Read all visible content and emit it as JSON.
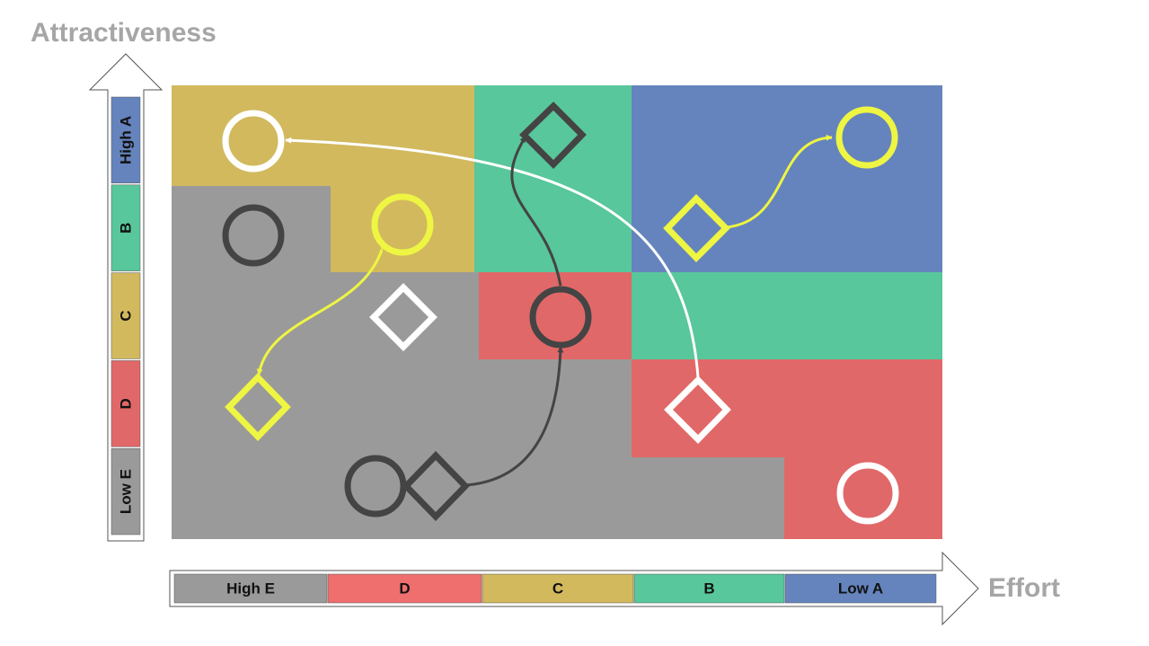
{
  "axes": {
    "y_title": "Attractiveness",
    "x_title": "Effort",
    "y_segments": [
      {
        "label": "High A",
        "color": "#6584bd"
      },
      {
        "label": "B",
        "color": "#58c79b"
      },
      {
        "label": "C",
        "color": "#d2b95e"
      },
      {
        "label": "D",
        "color": "#e16868"
      },
      {
        "label": "Low E",
        "color": "#9a9a9a"
      }
    ],
    "x_segments": [
      {
        "label": "High E",
        "color": "#9a9a9a"
      },
      {
        "label": "D",
        "color": "#ef6e6e"
      },
      {
        "label": "C",
        "color": "#d2b95e"
      },
      {
        "label": "B",
        "color": "#58c79b"
      },
      {
        "label": "Low A",
        "color": "#6584bd"
      }
    ]
  },
  "colors": {
    "grey": "#9a9a9a",
    "gold": "#d2b95e",
    "green": "#58c79b",
    "blue": "#6584bd",
    "red": "#e16868",
    "marker_dark": "#444444",
    "marker_white": "#ffffff",
    "marker_yellow": "#eef542",
    "arrow_border": "#555555"
  },
  "markers": [
    {
      "name": "white-circle-top-left",
      "shape": "circle",
      "color": "white"
    },
    {
      "name": "dark-circle-grey",
      "shape": "circle",
      "color": "dark"
    },
    {
      "name": "yellow-circle-gold",
      "shape": "circle",
      "color": "yellow"
    },
    {
      "name": "dark-diamond-green",
      "shape": "diamond",
      "color": "dark"
    },
    {
      "name": "yellow-circle-blue",
      "shape": "circle",
      "color": "yellow"
    },
    {
      "name": "yellow-diamond-blue",
      "shape": "diamond",
      "color": "yellow"
    },
    {
      "name": "white-diamond-grey",
      "shape": "diamond",
      "color": "white"
    },
    {
      "name": "dark-circle-red",
      "shape": "circle",
      "color": "dark"
    },
    {
      "name": "yellow-diamond-grey",
      "shape": "diamond",
      "color": "yellow"
    },
    {
      "name": "white-diamond-red",
      "shape": "diamond",
      "color": "white"
    },
    {
      "name": "dark-circle-bottom",
      "shape": "circle",
      "color": "dark"
    },
    {
      "name": "dark-diamond-bottom",
      "shape": "diamond",
      "color": "dark"
    },
    {
      "name": "white-circle-bottom-right",
      "shape": "circle",
      "color": "white"
    }
  ],
  "movements": [
    {
      "name": "yellow-diamond-to-yellow-circle-blue",
      "color": "yellow"
    },
    {
      "name": "white-diamond-to-white-circle",
      "color": "white"
    },
    {
      "name": "dark-circle-to-dark-diamond",
      "color": "dark"
    },
    {
      "name": "dark-diamond-to-dark-circle",
      "color": "dark"
    },
    {
      "name": "yellow-circle-to-yellow-diamond",
      "color": "yellow"
    }
  ]
}
